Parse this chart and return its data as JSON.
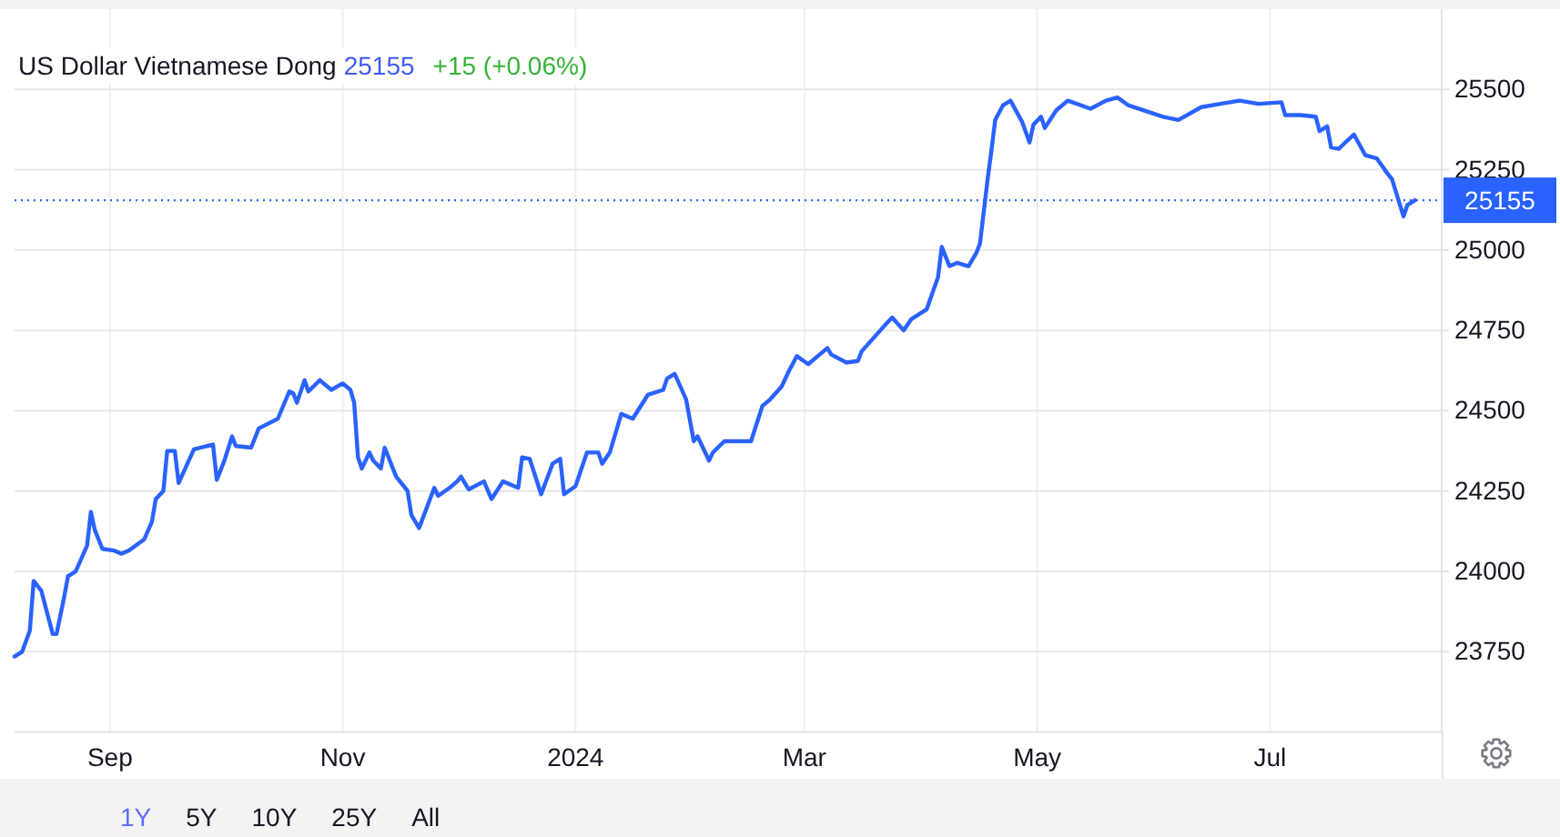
{
  "chart_data": {
    "type": "line",
    "title": "US Dollar Vietnamese Dong",
    "annotations": [
      "25155",
      "+15 (+0.06%)",
      "1Y",
      "5Y",
      "10Y",
      "25Y",
      "All"
    ],
    "x": [
      "2023-08-07",
      "2023-08-09",
      "2023-08-11",
      "2023-08-12",
      "2023-08-14",
      "2023-08-17",
      "2023-08-18",
      "2023-08-20",
      "2023-08-21",
      "2023-08-23",
      "2023-08-26",
      "2023-08-27",
      "2023-08-28",
      "2023-08-30",
      "2023-09-02",
      "2023-09-04",
      "2023-09-06",
      "2023-09-10",
      "2023-09-12",
      "2023-09-13",
      "2023-09-15",
      "2023-09-16",
      "2023-09-18",
      "2023-09-19",
      "2023-09-23",
      "2023-09-28",
      "2023-09-29",
      "2023-10-01",
      "2023-10-03",
      "2023-10-04",
      "2023-10-08",
      "2023-10-10",
      "2023-10-15",
      "2023-10-18",
      "2023-10-19",
      "2023-10-20",
      "2023-10-22",
      "2023-10-23",
      "2023-10-26",
      "2023-10-29",
      "2023-11-01",
      "2023-11-03",
      "2023-11-04",
      "2023-11-05",
      "2023-11-06",
      "2023-11-08",
      "2023-11-09",
      "2023-11-11",
      "2023-11-12",
      "2023-11-15",
      "2023-11-18",
      "2023-11-19",
      "2023-11-21",
      "2023-11-25",
      "2023-11-26",
      "2023-11-29",
      "2023-12-01",
      "2023-12-02",
      "2023-12-04",
      "2023-12-08",
      "2023-12-10",
      "2023-12-13",
      "2023-12-17",
      "2023-12-18",
      "2023-12-20",
      "2023-12-23",
      "2023-12-26",
      "2023-12-28",
      "2023-12-29",
      "2024-01-01",
      "2024-01-04",
      "2024-01-07",
      "2024-01-08",
      "2024-01-10",
      "2024-01-13",
      "2024-01-16",
      "2024-01-20",
      "2024-01-24",
      "2024-01-25",
      "2024-01-27",
      "2024-01-30",
      "2024-02-01",
      "2024-02-02",
      "2024-02-05",
      "2024-02-06",
      "2024-02-09",
      "2024-02-16",
      "2024-02-19",
      "2024-02-21",
      "2024-02-24",
      "2024-02-26",
      "2024-02-28",
      "2024-03-02",
      "2024-03-06",
      "2024-03-07",
      "2024-03-08",
      "2024-03-12",
      "2024-03-15",
      "2024-03-16",
      "2024-03-22",
      "2024-03-24",
      "2024-03-27",
      "2024-03-29",
      "2024-04-02",
      "2024-04-05",
      "2024-04-06",
      "2024-04-08",
      "2024-04-10",
      "2024-04-13",
      "2024-04-15",
      "2024-04-16",
      "2024-04-18",
      "2024-04-19",
      "2024-04-20",
      "2024-04-22",
      "2024-04-24",
      "2024-04-27",
      "2024-04-29",
      "2024-04-30",
      "2024-05-02",
      "2024-05-03",
      "2024-05-06",
      "2024-05-09",
      "2024-05-15",
      "2024-05-19",
      "2024-05-22",
      "2024-05-25",
      "2024-06-03",
      "2024-06-07",
      "2024-06-13",
      "2024-06-18",
      "2024-06-23",
      "2024-06-28",
      "2024-07-04",
      "2024-07-05",
      "2024-07-09",
      "2024-07-13",
      "2024-07-14",
      "2024-07-16",
      "2024-07-17",
      "2024-07-19",
      "2024-07-23",
      "2024-07-26",
      "2024-07-29",
      "2024-08-01",
      "2024-08-02",
      "2024-08-05",
      "2024-08-06",
      "2024-08-08"
    ],
    "series": [
      {
        "color": "#2962ff",
        "values": [
          23735,
          23750,
          23815,
          23970,
          23940,
          23805,
          23805,
          23920,
          23985,
          24000,
          24080,
          24185,
          24130,
          24070,
          24065,
          24055,
          24065,
          24100,
          24155,
          24225,
          24250,
          24375,
          24375,
          24275,
          24380,
          24395,
          24285,
          24345,
          24420,
          24390,
          24385,
          24445,
          24475,
          24560,
          24555,
          24525,
          24595,
          24560,
          24595,
          24565,
          24585,
          24565,
          24525,
          24355,
          24320,
          24370,
          24345,
          24320,
          24385,
          24295,
          24250,
          24175,
          24135,
          24260,
          24235,
          24260,
          24280,
          24295,
          24255,
          24280,
          24225,
          24280,
          24260,
          24355,
          24350,
          24240,
          24335,
          24350,
          24240,
          24265,
          24370,
          24370,
          24335,
          24370,
          24490,
          24475,
          24550,
          24565,
          24600,
          24615,
          24535,
          24405,
          24420,
          24345,
          24370,
          24405,
          24405,
          24515,
          24535,
          24575,
          24625,
          24670,
          24645,
          24685,
          24695,
          24675,
          24650,
          24655,
          24685,
          24765,
          24790,
          24750,
          24785,
          24815,
          24915,
          25010,
          24950,
          24960,
          24950,
          24990,
          25020,
          25220,
          25310,
          25405,
          25450,
          25465,
          25400,
          25335,
          25390,
          25415,
          25380,
          25435,
          25465,
          25440,
          25465,
          25475,
          25450,
          25415,
          25405,
          25445,
          25455,
          25465,
          25455,
          25460,
          25420,
          25420,
          25415,
          25370,
          25385,
          25320,
          25315,
          25360,
          25295,
          25285,
          25235,
          25220,
          25105,
          25140,
          25155
        ]
      }
    ],
    "xlim": [
      "2023-08-07",
      "2024-08-15"
    ],
    "ylim": [
      23500,
      25750
    ],
    "xticks": [
      {
        "value": "2023-09-01",
        "label": "Sep"
      },
      {
        "value": "2023-11-01",
        "label": "Nov"
      },
      {
        "value": "2024-01-01",
        "label": "2024"
      },
      {
        "value": "2024-03-01",
        "label": "Mar"
      },
      {
        "value": "2024-05-01",
        "label": "May"
      },
      {
        "value": "2024-07-01",
        "label": "Jul"
      }
    ],
    "yticks": [
      23750,
      24000,
      24250,
      24500,
      24750,
      25000,
      25250,
      25500
    ],
    "grid": true,
    "ref_lines": [
      {
        "axis": "y",
        "value": 25155,
        "label": "25155",
        "color": "#2962ff",
        "line_style": "dotted"
      }
    ]
  }
}
